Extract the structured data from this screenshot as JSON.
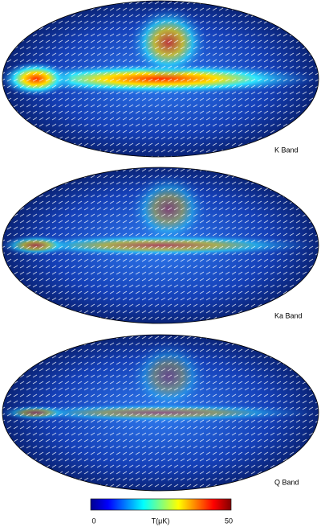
{
  "panels": [
    {
      "label": "K Band"
    },
    {
      "label": "Ka Band"
    },
    {
      "label": "Q Band"
    }
  ],
  "colorbar": {
    "min": 0,
    "max": 50,
    "label": "T(μK)"
  }
}
